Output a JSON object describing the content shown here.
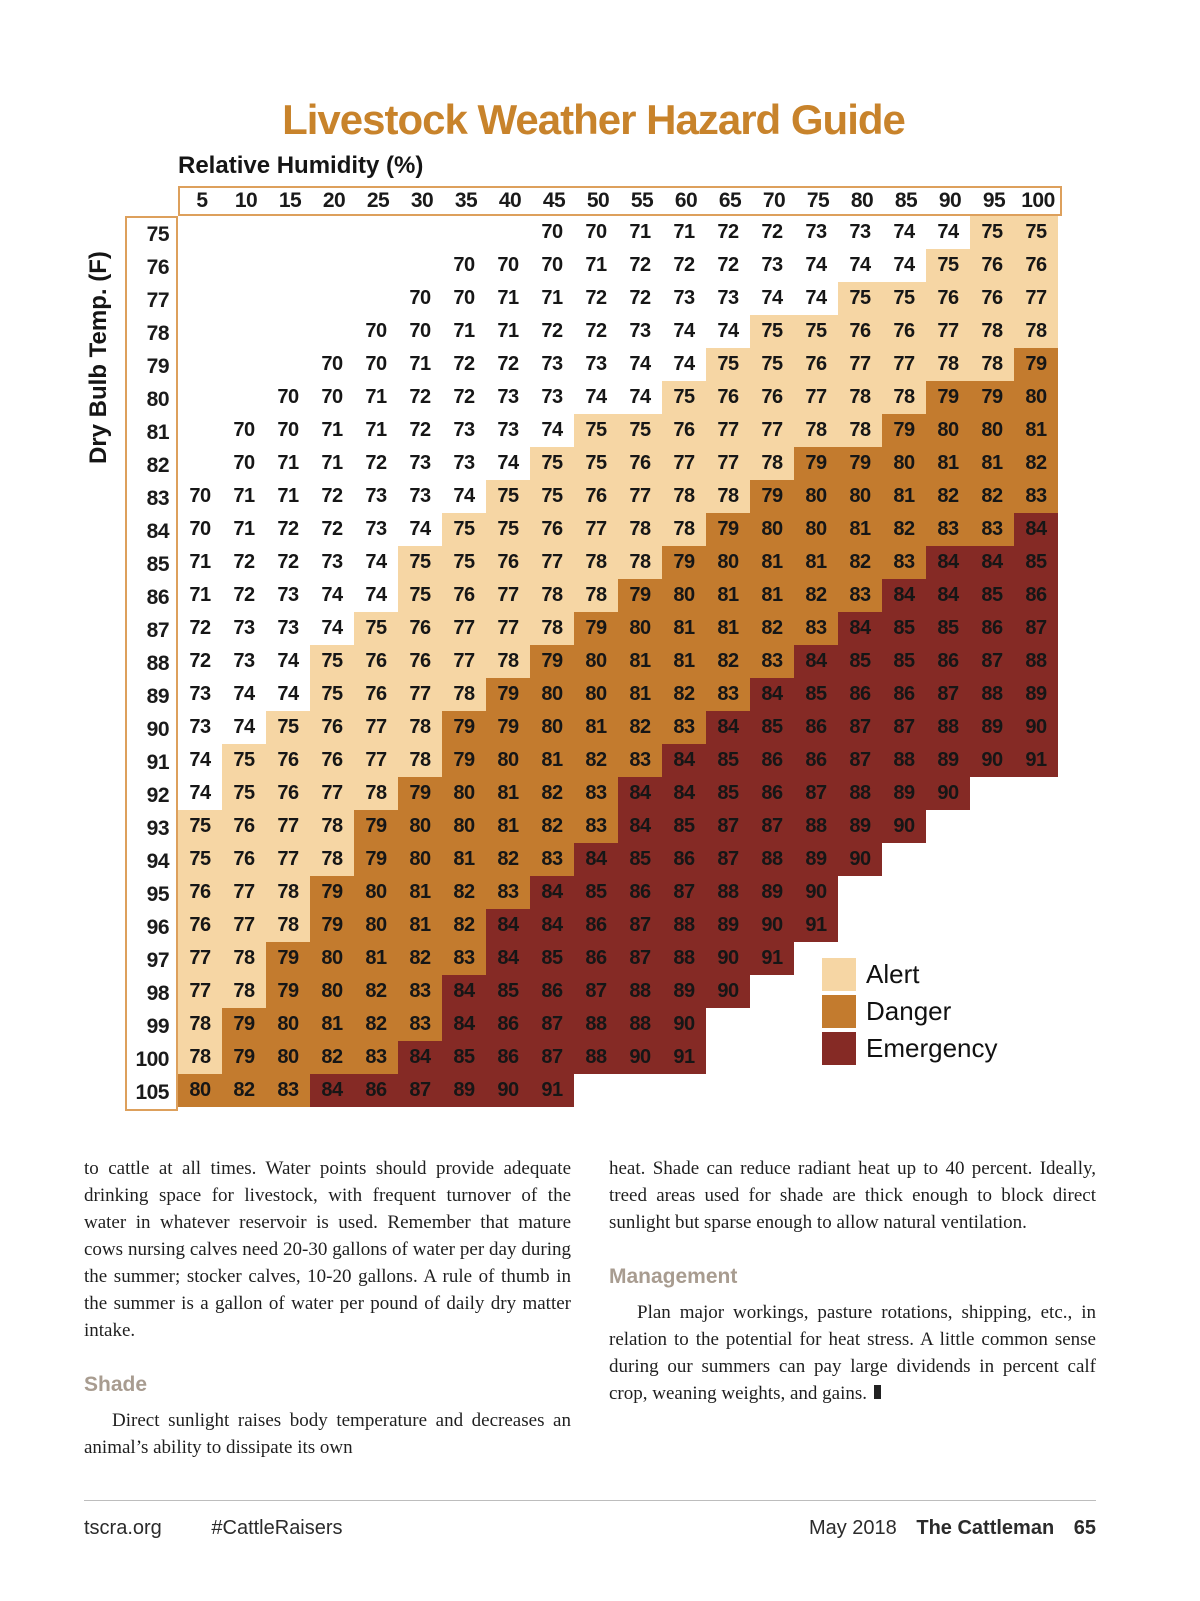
{
  "title": "Livestock Weather Hazard Guide",
  "chart_data": {
    "type": "heatmap",
    "title": "Livestock Weather Hazard Guide",
    "xlabel": "Relative Humidity (%)",
    "ylabel": "Dry Bulb Temp. (F)",
    "columns": [
      5,
      10,
      15,
      20,
      25,
      30,
      35,
      40,
      45,
      50,
      55,
      60,
      65,
      70,
      75,
      80,
      85,
      90,
      95,
      100
    ],
    "rows": [
      {
        "temp": 75,
        "values": [
          null,
          null,
          null,
          null,
          null,
          null,
          null,
          null,
          70,
          70,
          71,
          71,
          72,
          72,
          73,
          73,
          74,
          74,
          75,
          75
        ]
      },
      {
        "temp": 76,
        "values": [
          null,
          null,
          null,
          null,
          null,
          null,
          70,
          70,
          70,
          71,
          72,
          72,
          72,
          73,
          74,
          74,
          74,
          75,
          76,
          76
        ]
      },
      {
        "temp": 77,
        "values": [
          null,
          null,
          null,
          null,
          null,
          70,
          70,
          71,
          71,
          72,
          72,
          73,
          73,
          74,
          74,
          75,
          75,
          76,
          76,
          77
        ]
      },
      {
        "temp": 78,
        "values": [
          null,
          null,
          null,
          null,
          70,
          70,
          71,
          71,
          72,
          72,
          73,
          74,
          74,
          75,
          75,
          76,
          76,
          77,
          78,
          78
        ]
      },
      {
        "temp": 79,
        "values": [
          null,
          null,
          null,
          70,
          70,
          71,
          72,
          72,
          73,
          73,
          74,
          74,
          75,
          75,
          76,
          77,
          77,
          78,
          78,
          79
        ]
      },
      {
        "temp": 80,
        "values": [
          null,
          null,
          70,
          70,
          71,
          72,
          72,
          73,
          73,
          74,
          74,
          75,
          76,
          76,
          77,
          78,
          78,
          79,
          79,
          80
        ]
      },
      {
        "temp": 81,
        "values": [
          null,
          70,
          70,
          71,
          71,
          72,
          73,
          73,
          74,
          75,
          75,
          76,
          77,
          77,
          78,
          78,
          79,
          80,
          80,
          81
        ]
      },
      {
        "temp": 82,
        "values": [
          null,
          70,
          71,
          71,
          72,
          73,
          73,
          74,
          75,
          75,
          76,
          77,
          77,
          78,
          79,
          79,
          80,
          81,
          81,
          82
        ]
      },
      {
        "temp": 83,
        "values": [
          70,
          71,
          71,
          72,
          73,
          73,
          74,
          75,
          75,
          76,
          77,
          78,
          78,
          79,
          80,
          80,
          81,
          82,
          82,
          83
        ]
      },
      {
        "temp": 84,
        "values": [
          70,
          71,
          72,
          72,
          73,
          74,
          75,
          75,
          76,
          77,
          78,
          78,
          79,
          80,
          80,
          81,
          82,
          83,
          83,
          84
        ]
      },
      {
        "temp": 85,
        "values": [
          71,
          72,
          72,
          73,
          74,
          75,
          75,
          76,
          77,
          78,
          78,
          79,
          80,
          81,
          81,
          82,
          83,
          84,
          84,
          85
        ]
      },
      {
        "temp": 86,
        "values": [
          71,
          72,
          73,
          74,
          74,
          75,
          76,
          77,
          78,
          78,
          79,
          80,
          81,
          81,
          82,
          83,
          84,
          84,
          85,
          86
        ]
      },
      {
        "temp": 87,
        "values": [
          72,
          73,
          73,
          74,
          75,
          76,
          77,
          77,
          78,
          79,
          80,
          81,
          81,
          82,
          83,
          84,
          85,
          85,
          86,
          87
        ]
      },
      {
        "temp": 88,
        "values": [
          72,
          73,
          74,
          75,
          76,
          76,
          77,
          78,
          79,
          80,
          81,
          81,
          82,
          83,
          84,
          85,
          85,
          86,
          87,
          88
        ]
      },
      {
        "temp": 89,
        "values": [
          73,
          74,
          74,
          75,
          76,
          77,
          78,
          79,
          80,
          80,
          81,
          82,
          83,
          84,
          85,
          86,
          86,
          87,
          88,
          89
        ]
      },
      {
        "temp": 90,
        "values": [
          73,
          74,
          75,
          76,
          77,
          78,
          79,
          79,
          80,
          81,
          82,
          83,
          84,
          85,
          86,
          87,
          87,
          88,
          89,
          90
        ]
      },
      {
        "temp": 91,
        "values": [
          74,
          75,
          76,
          76,
          77,
          78,
          79,
          80,
          81,
          82,
          83,
          84,
          85,
          86,
          86,
          87,
          88,
          89,
          90,
          91
        ]
      },
      {
        "temp": 92,
        "values": [
          74,
          75,
          76,
          77,
          78,
          79,
          80,
          81,
          82,
          83,
          84,
          84,
          85,
          86,
          87,
          88,
          89,
          90,
          null,
          null
        ]
      },
      {
        "temp": 93,
        "values": [
          75,
          76,
          77,
          78,
          79,
          80,
          80,
          81,
          82,
          83,
          84,
          85,
          87,
          87,
          88,
          89,
          90,
          null,
          null,
          null
        ]
      },
      {
        "temp": 94,
        "values": [
          75,
          76,
          77,
          78,
          79,
          80,
          81,
          82,
          83,
          84,
          85,
          86,
          87,
          88,
          89,
          90,
          null,
          null,
          null,
          null
        ]
      },
      {
        "temp": 95,
        "values": [
          76,
          77,
          78,
          79,
          80,
          81,
          82,
          83,
          84,
          85,
          86,
          87,
          88,
          89,
          90,
          null,
          null,
          null,
          null,
          null
        ]
      },
      {
        "temp": 96,
        "values": [
          76,
          77,
          78,
          79,
          80,
          81,
          82,
          84,
          84,
          86,
          87,
          88,
          89,
          90,
          91,
          null,
          null,
          null,
          null,
          null
        ]
      },
      {
        "temp": 97,
        "values": [
          77,
          78,
          79,
          80,
          81,
          82,
          83,
          84,
          85,
          86,
          87,
          88,
          90,
          91,
          null,
          null,
          null,
          null,
          null,
          null
        ]
      },
      {
        "temp": 98,
        "values": [
          77,
          78,
          79,
          80,
          82,
          83,
          84,
          85,
          86,
          87,
          88,
          89,
          90,
          null,
          null,
          null,
          null,
          null,
          null,
          null
        ]
      },
      {
        "temp": 99,
        "values": [
          78,
          79,
          80,
          81,
          82,
          83,
          84,
          86,
          87,
          88,
          88,
          90,
          null,
          null,
          null,
          null,
          null,
          null,
          null,
          null
        ]
      },
      {
        "temp": 100,
        "values": [
          78,
          79,
          80,
          82,
          83,
          84,
          85,
          86,
          87,
          88,
          90,
          91,
          null,
          null,
          null,
          null,
          null,
          null,
          null,
          null
        ]
      },
      {
        "temp": 105,
        "values": [
          80,
          82,
          83,
          84,
          86,
          87,
          89,
          90,
          91,
          null,
          null,
          null,
          null,
          null,
          null,
          null,
          null,
          null,
          null,
          null
        ]
      }
    ],
    "thresholds": {
      "alert_min": 75,
      "danger_min": 79,
      "emergency_min": 84
    },
    "colors": {
      "none": "#FFFFFF",
      "alert": "#F6D6A4",
      "danger": "#C37B2E",
      "emergency": "#852A25"
    },
    "legend": [
      {
        "key": "alert",
        "label": "Alert"
      },
      {
        "key": "danger",
        "label": "Danger"
      },
      {
        "key": "emergency",
        "label": "Emergency"
      }
    ],
    "legend_position": "bottom-right",
    "grid": false
  },
  "body": {
    "left": {
      "para1": "to cattle at all times. Water points should provide adequate drinking space for livestock, with frequent turnover of the water in whatever reservoir is used. Remember that mature cows nursing calves need 20-30 gallons of water per day during the summer; stocker calves, 10-20 gallons. A rule of thumb in the summer is a gallon of water per pound of daily dry matter intake.",
      "heading": "Shade",
      "para2": "Direct sunlight raises body temperature and decreases an animal’s ability to dissipate its own"
    },
    "right": {
      "para1": "heat. Shade can reduce radiant heat up to 40 percent. Ideally, treed areas used for shade are thick enough to block direct sunlight but sparse enough to allow natural ventilation.",
      "heading": "Management",
      "para2": "Plan major workings, pasture rotations, shipping, etc., in relation to the potential for heat stress. A little common sense during our summers can pay large dividends in percent calf crop, weaning weights, and gains."
    }
  },
  "footer": {
    "site": "tscra.org",
    "hashtag": "#CattleRaisers",
    "issue": "May 2018",
    "magazine": "The Cattleman",
    "page_number": "65"
  },
  "theme": {
    "title_color": "#C8832B",
    "frame_color": "#DDA05C",
    "heading_color": "#A89C90"
  }
}
